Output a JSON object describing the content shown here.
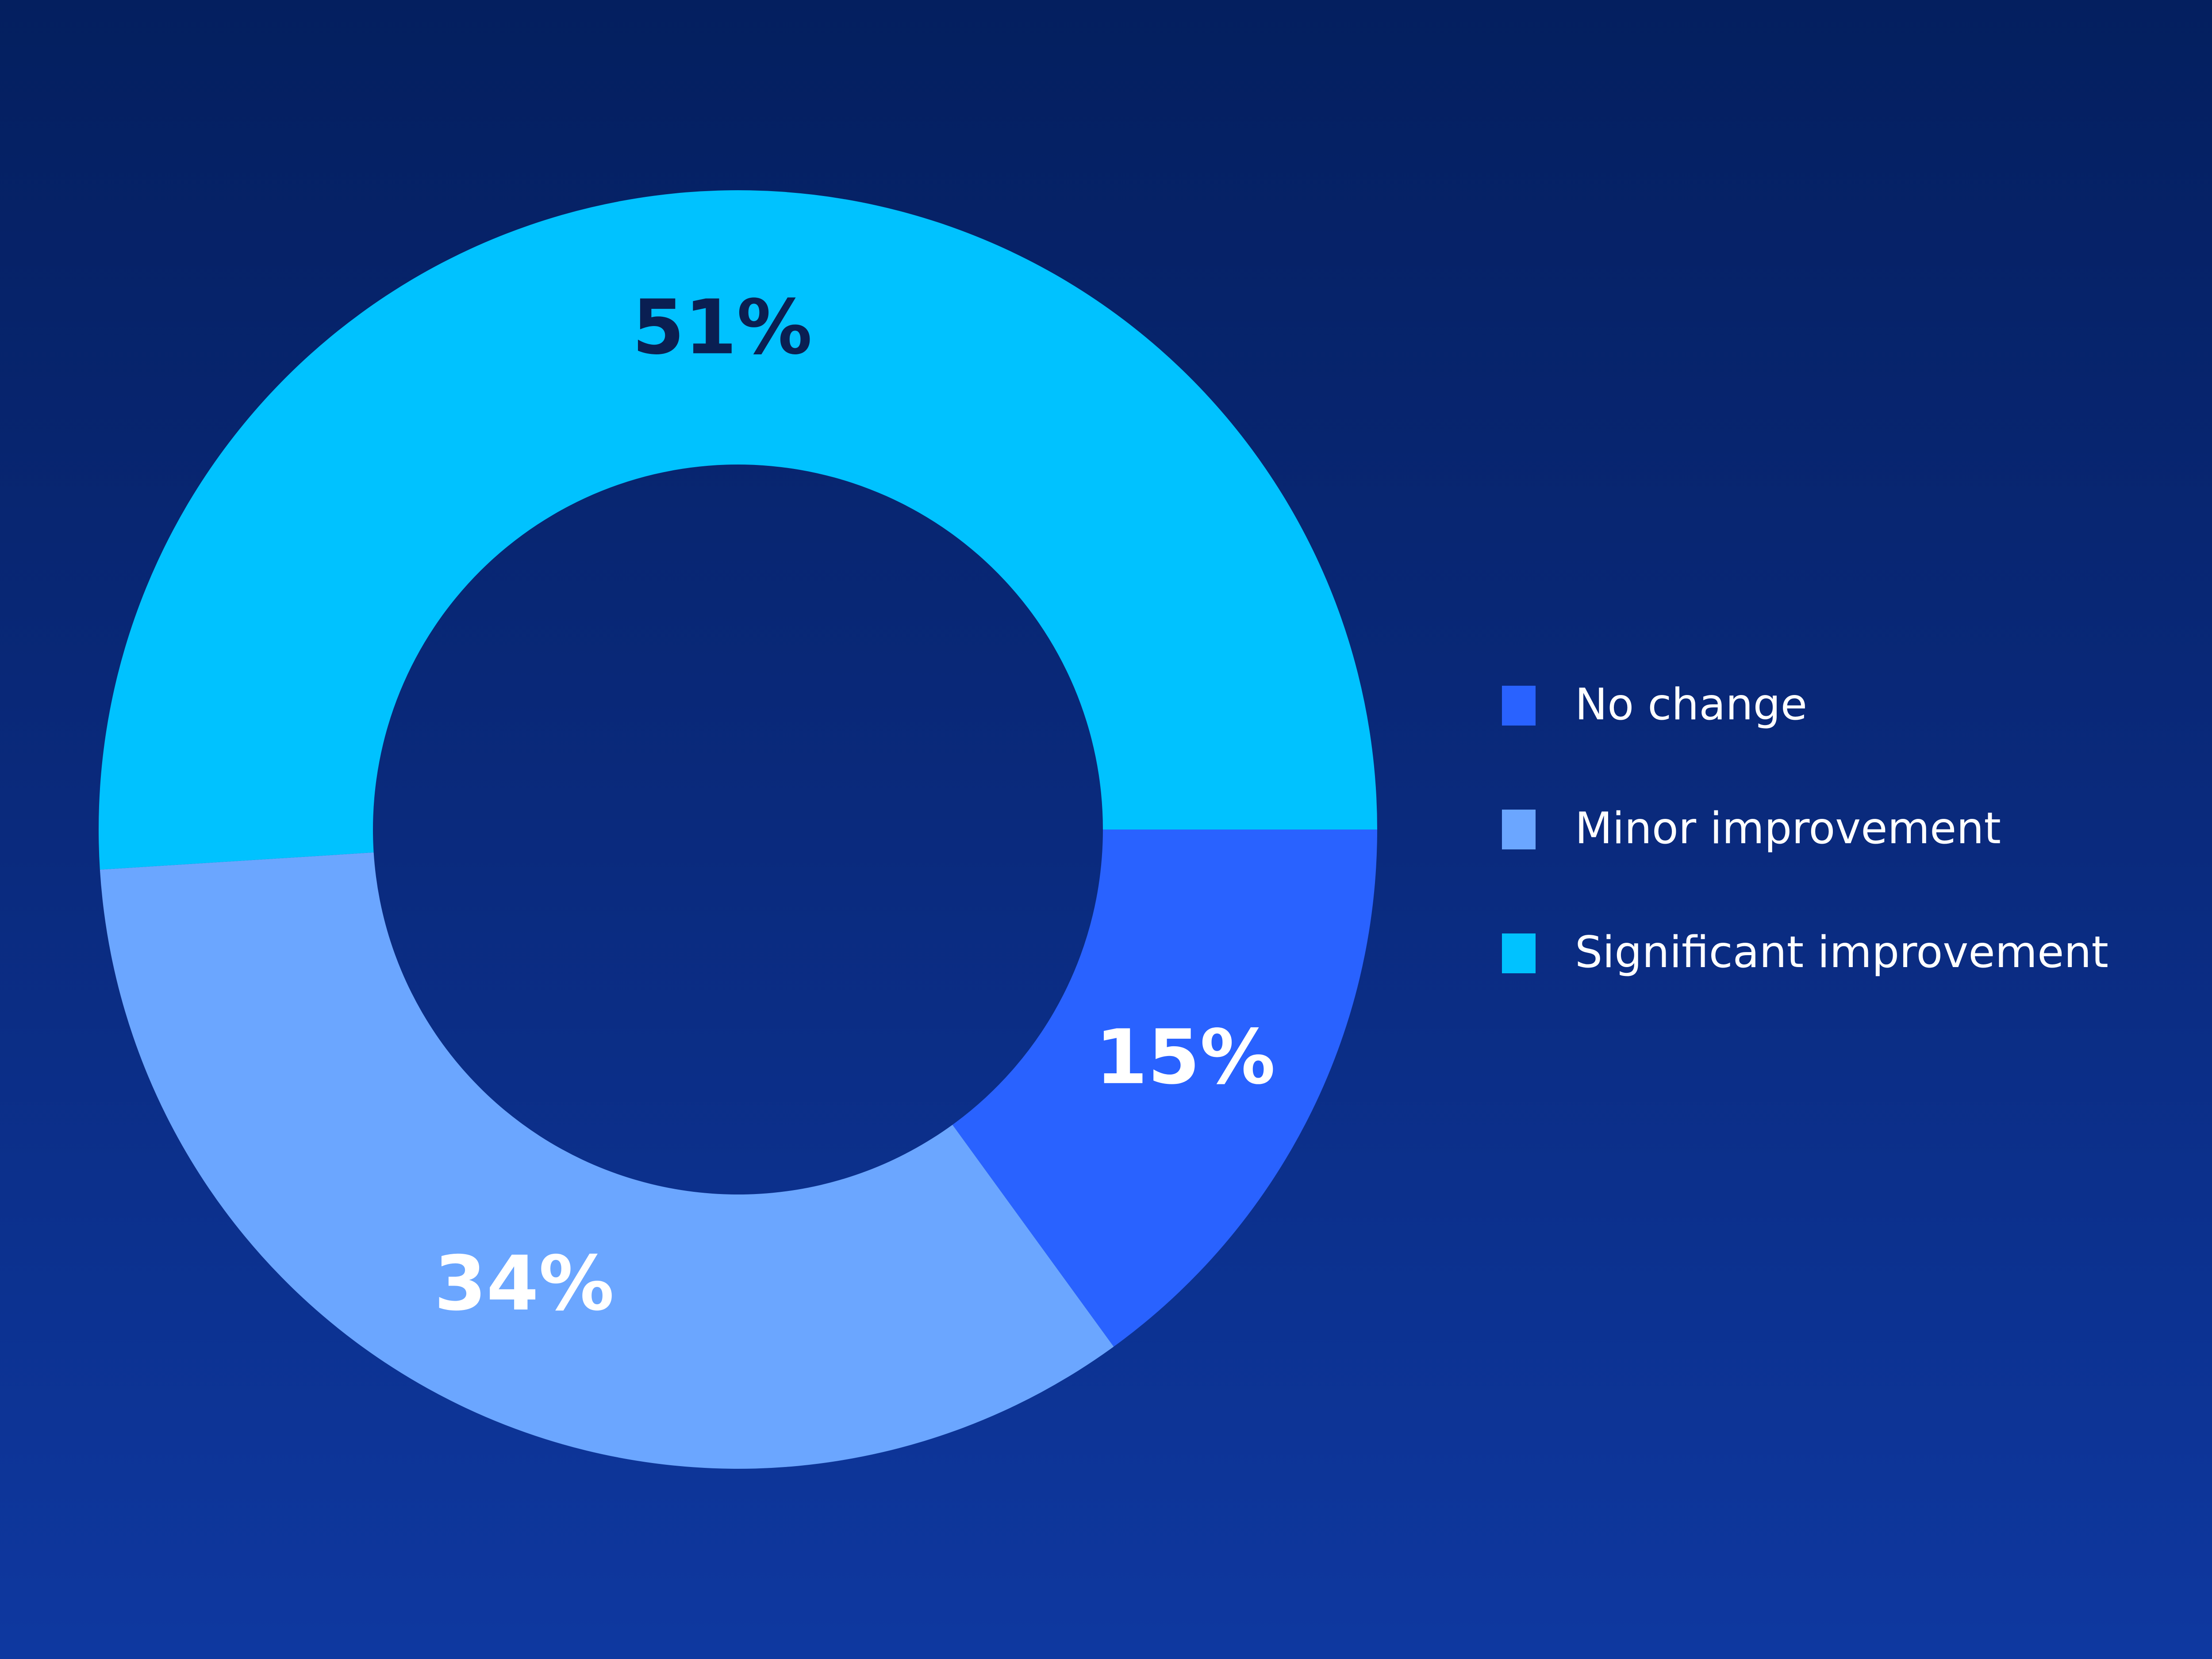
{
  "chart_data": {
    "type": "pie",
    "donut": true,
    "title": "",
    "slices": [
      {
        "label": "No change",
        "value": 15,
        "display": "15%",
        "color": "#2962ff",
        "label_color": "#ffffff"
      },
      {
        "label": "Minor improvement",
        "value": 34,
        "display": "34%",
        "color": "#6ba6ff",
        "label_color": "#ffffff"
      },
      {
        "label": "Significant improvement",
        "value": 51,
        "display": "51%",
        "color": "#00c2ff",
        "label_color": "#0a1f52"
      }
    ],
    "legend": {
      "placement": "right",
      "items": [
        {
          "label": "No change",
          "color": "#2962ff"
        },
        {
          "label": "Minor improvement",
          "color": "#6ba6ff"
        },
        {
          "label": "Significant improvement",
          "color": "#00c2ff"
        }
      ]
    },
    "colors": {
      "background_top": "#041f5f",
      "background_bottom": "#0e38a0"
    }
  }
}
